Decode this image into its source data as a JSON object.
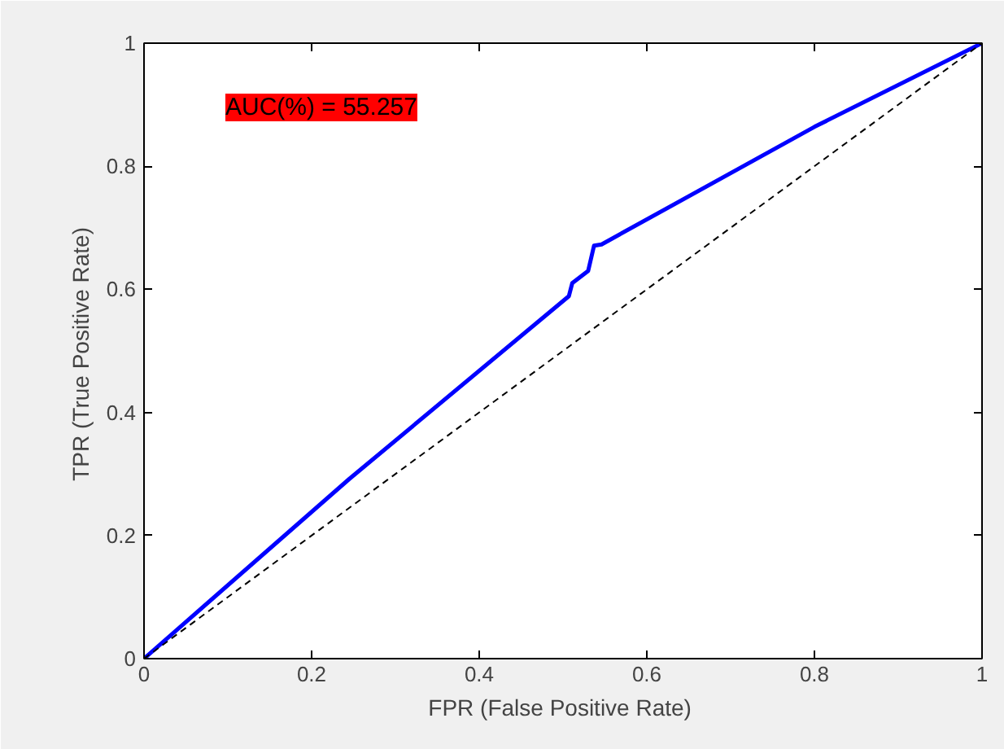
{
  "chart_data": {
    "type": "line",
    "xlabel": "FPR  (False Positive Rate)",
    "ylabel": "TPR  (True Positive Rate)",
    "annotations": [
      "AUC(%) = 55.257"
    ],
    "series": [
      {
        "color": "#0000ff",
        "x": [
          0,
          0.245,
          0.507,
          0.511,
          0.53,
          0.537,
          0.546,
          0.8,
          1
        ],
        "values": [
          0,
          0.292,
          0.589,
          0.61,
          0.63,
          0.671,
          0.673,
          0.864,
          1
        ],
        "line_style": "solid"
      },
      {
        "color": "#000000",
        "x": [
          0,
          1
        ],
        "values": [
          0,
          1
        ],
        "line_style": "dashed"
      }
    ],
    "xlim": [
      0,
      1
    ],
    "ylim": [
      0,
      1
    ],
    "xticks": [
      0,
      0.2,
      0.4,
      0.6,
      0.8,
      1
    ],
    "yticks": [
      0,
      0.2,
      0.4,
      0.6,
      0.8,
      1
    ],
    "grid": false,
    "marker": "none"
  }
}
